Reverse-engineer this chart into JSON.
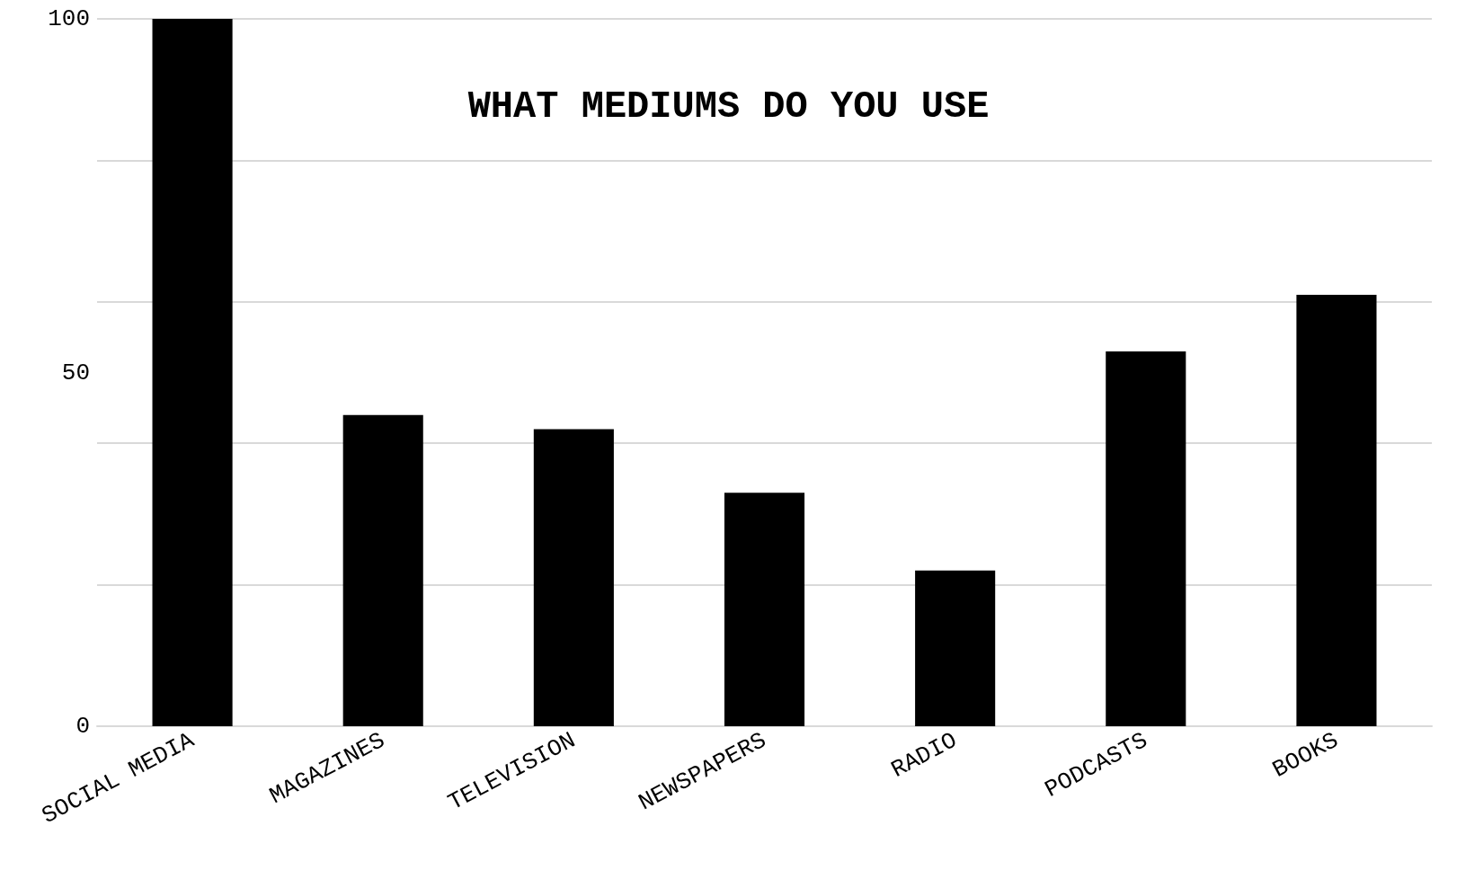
{
  "chart_data": {
    "type": "bar",
    "title": "WHAT MEDIUMS DO YOU USE",
    "categories": [
      "SOCIAL MEDIA",
      "MAGAZINES",
      "TELEVISION",
      "NEWSPAPERS",
      "RADIO",
      "PODCASTS",
      "BOOKS"
    ],
    "values": [
      100,
      44,
      42,
      33,
      22,
      53,
      61
    ],
    "color": "#000000",
    "ylim": [
      0,
      100
    ],
    "yticks": [
      0,
      {
        "value": 20,
        "label": null
      },
      {
        "value": 40,
        "label": null
      },
      50,
      {
        "value": 60,
        "label": null
      },
      {
        "value": 80,
        "label": null
      },
      100
    ],
    "grid": true
  }
}
